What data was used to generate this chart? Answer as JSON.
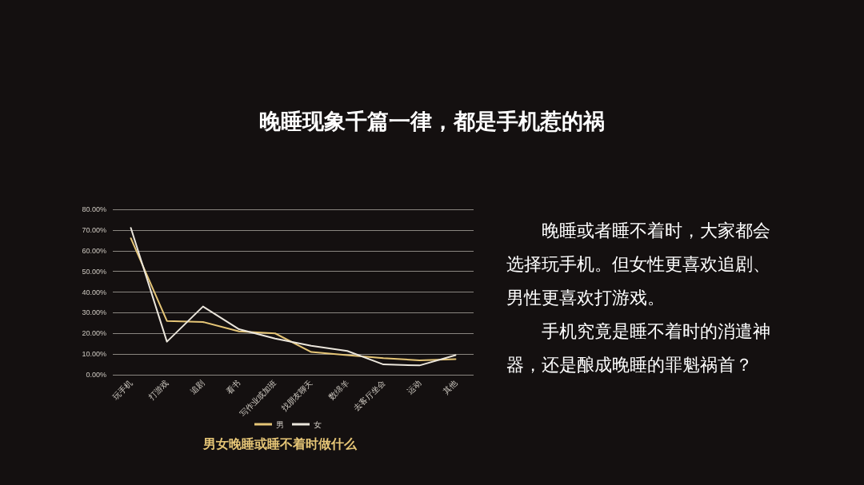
{
  "chart_data": {
    "type": "line",
    "title": "晚睡现象千篇一律，都是手机惹的祸",
    "subtitle": "男女晚睡或睡不着时做什么",
    "categories": [
      "玩手机",
      "打游戏",
      "追剧",
      "看书",
      "写作业或加班",
      "找朋友聊天",
      "数绵羊",
      "去客厅坐会",
      "运动",
      "其他"
    ],
    "series": [
      {
        "name": "男",
        "color": "#e6c677",
        "values": [
          66,
          26,
          25.5,
          21,
          20,
          11,
          9.5,
          8,
          7,
          7.5
        ]
      },
      {
        "name": "女",
        "color": "#ebe6dc",
        "values": [
          71,
          16,
          33,
          22,
          17.5,
          14,
          11.5,
          5,
          4.5,
          9.5
        ]
      }
    ],
    "ylim": [
      0,
      80
    ],
    "yticks": [
      {
        "value": 0,
        "label": "0.00%"
      },
      {
        "value": 10,
        "label": "10.00%"
      },
      {
        "value": 20,
        "label": "20.00%"
      },
      {
        "value": 30,
        "label": "30.00%"
      },
      {
        "value": 40,
        "label": "40.00%"
      },
      {
        "value": 50,
        "label": "50.00%"
      },
      {
        "value": 60,
        "label": "60.00%"
      },
      {
        "value": 70,
        "label": "70.00%"
      },
      {
        "value": 80,
        "label": "80.00%"
      }
    ],
    "grid": "y",
    "legend": "bottom",
    "marker": "none",
    "line_style": "solid",
    "annotations": [
      "晚睡或者睡不着时，大家都会选择玩手机。但女性更喜欢追剧、男性更喜欢打游戏。",
      "手机究竟是睡不着时的消遣神器，还是酿成晚睡的罪魁祸首？"
    ]
  }
}
